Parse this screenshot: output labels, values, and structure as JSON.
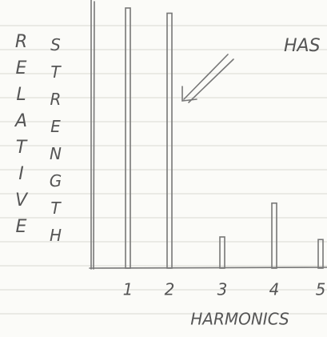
{
  "chart_data": {
    "type": "bar",
    "annotation": "HAS",
    "y_label_left": "RELATIVE",
    "y_label_right": "STRENGTH",
    "x_label": "HARMONICS",
    "categories": [
      "1",
      "2",
      "3",
      "4",
      "5"
    ],
    "values": [
      10,
      9.8,
      1.2,
      2.5,
      1.1
    ],
    "color": "#777777",
    "ylim": [
      0,
      10
    ]
  }
}
